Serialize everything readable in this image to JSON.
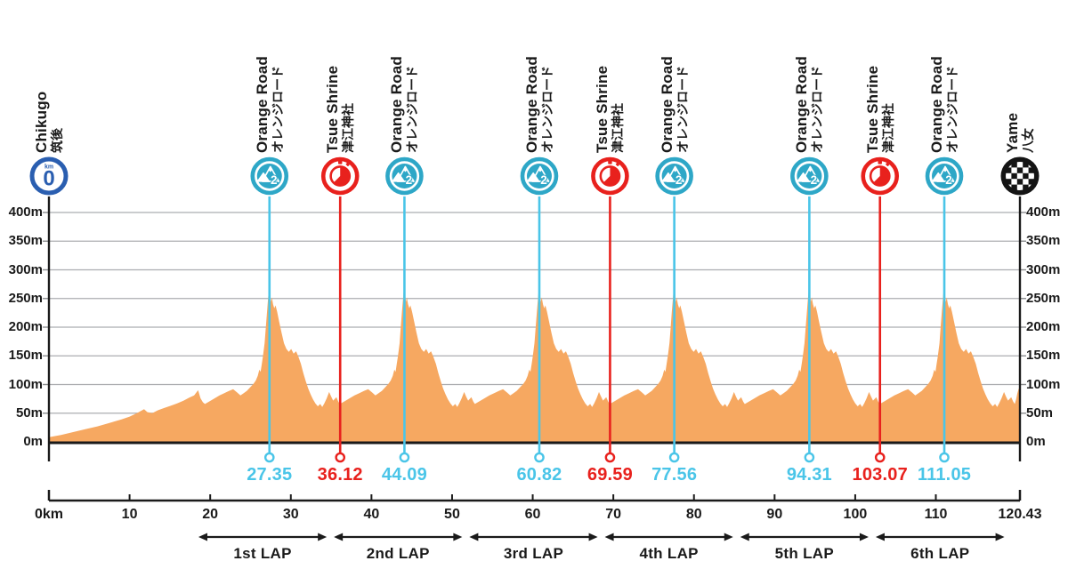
{
  "colors": {
    "profile_fill": "#F6A861",
    "kom_line": "#4AC5E8",
    "kom_icon": "#2EA7C7",
    "sprint_red": "#E8211D",
    "start_blue": "#2A5EB0",
    "finish_black": "#141414",
    "grid": "#ABADB0",
    "ink": "#1A1A1A"
  },
  "chart_data": {
    "type": "area",
    "total_km": 120.43,
    "y_axis": {
      "unit": "m",
      "min": 0,
      "max": 400,
      "step": 50,
      "labels": [
        "0m",
        "50m",
        "100m",
        "150m",
        "200m",
        "250m",
        "300m",
        "350m",
        "400m"
      ],
      "shown_on": "both-sides"
    },
    "x_axis": {
      "unit": "km",
      "ticks": [
        {
          "km": 0,
          "label": "0km"
        },
        {
          "km": 10,
          "label": "10"
        },
        {
          "km": 20,
          "label": "20"
        },
        {
          "km": 30,
          "label": "30"
        },
        {
          "km": 40,
          "label": "40"
        },
        {
          "km": 50,
          "label": "50"
        },
        {
          "km": 60,
          "label": "60"
        },
        {
          "km": 70,
          "label": "70"
        },
        {
          "km": 80,
          "label": "80"
        },
        {
          "km": 90,
          "label": "90"
        },
        {
          "km": 100,
          "label": "100"
        },
        {
          "km": 110,
          "label": "110"
        },
        {
          "km": 120.43,
          "label": "120.43"
        }
      ]
    },
    "markers": [
      {
        "type": "start",
        "icon": "km-zero-badge-icon",
        "km": 0,
        "name_en": "Chikugo",
        "name_ja": "筑後",
        "distance_label": ""
      },
      {
        "type": "kom",
        "icon": "category-2-climb-icon",
        "km": 27.35,
        "name_en": "Orange Road",
        "name_ja": "オレンジロード",
        "distance_label": "27.35"
      },
      {
        "type": "sprint",
        "icon": "stopwatch-icon",
        "km": 36.12,
        "name_en": "Tsue Shrine",
        "name_ja": "津江神社",
        "distance_label": "36.12"
      },
      {
        "type": "kom",
        "icon": "category-2-climb-icon",
        "km": 44.09,
        "name_en": "Orange Road",
        "name_ja": "オレンジロード",
        "distance_label": "44.09"
      },
      {
        "type": "kom",
        "icon": "category-2-climb-icon",
        "km": 60.82,
        "name_en": "Orange Road",
        "name_ja": "オレンジロード",
        "distance_label": "60.82"
      },
      {
        "type": "sprint",
        "icon": "stopwatch-icon",
        "km": 69.59,
        "name_en": "Tsue Shrine",
        "name_ja": "津江神社",
        "distance_label": "69.59"
      },
      {
        "type": "kom",
        "icon": "category-2-climb-icon",
        "km": 77.56,
        "name_en": "Orange Road",
        "name_ja": "オレンジロード",
        "distance_label": "77.56"
      },
      {
        "type": "kom",
        "icon": "category-2-climb-icon",
        "km": 94.31,
        "name_en": "Orange Road",
        "name_ja": "オレンジロード",
        "distance_label": "94.31"
      },
      {
        "type": "sprint",
        "icon": "stopwatch-icon",
        "km": 103.07,
        "name_en": "Tsue Shrine",
        "name_ja": "津江神社",
        "distance_label": "103.07"
      },
      {
        "type": "kom",
        "icon": "category-2-climb-icon",
        "km": 111.05,
        "name_en": "Orange Road",
        "name_ja": "オレンジロード",
        "distance_label": "111.05"
      },
      {
        "type": "finish",
        "icon": "checkered-finish-icon",
        "km": 120.43,
        "name_en": "Yame",
        "name_ja": "八女",
        "distance_label": ""
      }
    ],
    "laps": [
      {
        "label": "1st LAP",
        "from_km": 18.1,
        "to_km": 34.9
      },
      {
        "label": "2nd LAP",
        "from_km": 34.9,
        "to_km": 51.7
      },
      {
        "label": "3rd LAP",
        "from_km": 51.7,
        "to_km": 68.5
      },
      {
        "label": "4th LAP",
        "from_km": 68.5,
        "to_km": 85.3
      },
      {
        "label": "5th LAP",
        "from_km": 85.3,
        "to_km": 102.1
      },
      {
        "label": "6th LAP",
        "from_km": 102.1,
        "to_km": 118.95
      }
    ],
    "profile": {
      "runin_points": [
        [
          0,
          8
        ],
        [
          1.5,
          12
        ],
        [
          3,
          17
        ],
        [
          4.5,
          22
        ],
        [
          6,
          27
        ],
        [
          7.5,
          33
        ],
        [
          9,
          39
        ],
        [
          10,
          44
        ],
        [
          10.9,
          50
        ],
        [
          11.8,
          57
        ],
        [
          12.2,
          52
        ],
        [
          12.8,
          50
        ],
        [
          13.5,
          55
        ],
        [
          14.3,
          59
        ],
        [
          15.1,
          63
        ],
        [
          15.9,
          67
        ],
        [
          16.7,
          72
        ],
        [
          17.4,
          77
        ],
        [
          18.0,
          81
        ],
        [
          18.5,
          90
        ],
        [
          18.8,
          76
        ],
        [
          19.1,
          69
        ]
      ],
      "lap_peaks_km": [
        27.35,
        44.09,
        60.82,
        77.56,
        94.31,
        111.05
      ],
      "lap_pattern_rel_to_peak": [
        [
          -8.0,
          66
        ],
        [
          -7.4,
          71
        ],
        [
          -6.8,
          76
        ],
        [
          -6.2,
          81
        ],
        [
          -5.6,
          85
        ],
        [
          -5.0,
          89
        ],
        [
          -4.5,
          92
        ],
        [
          -4.0,
          86
        ],
        [
          -3.6,
          81
        ],
        [
          -3.2,
          85
        ],
        [
          -2.8,
          89
        ],
        [
          -2.4,
          95
        ],
        [
          -2.0,
          101
        ],
        [
          -1.7,
          107
        ],
        [
          -1.45,
          115
        ],
        [
          -1.25,
          126
        ],
        [
          -1.1,
          122
        ],
        [
          -0.95,
          136
        ],
        [
          -0.8,
          150
        ],
        [
          -0.6,
          172
        ],
        [
          -0.45,
          200
        ],
        [
          -0.3,
          228
        ],
        [
          -0.18,
          248
        ],
        [
          -0.1,
          262
        ],
        [
          0,
          250
        ],
        [
          0.08,
          259
        ],
        [
          0.18,
          244
        ],
        [
          0.3,
          252
        ],
        [
          0.45,
          240
        ],
        [
          0.6,
          233
        ],
        [
          0.75,
          238
        ],
        [
          0.95,
          227
        ],
        [
          1.2,
          210
        ],
        [
          1.5,
          190
        ],
        [
          1.8,
          172
        ],
        [
          2.1,
          162
        ],
        [
          2.4,
          157
        ],
        [
          2.7,
          162
        ],
        [
          3.0,
          154
        ],
        [
          3.3,
          158
        ],
        [
          3.6,
          148
        ],
        [
          3.9,
          136
        ],
        [
          4.2,
          120
        ],
        [
          4.5,
          106
        ],
        [
          4.8,
          93
        ],
        [
          5.1,
          83
        ],
        [
          5.4,
          74
        ],
        [
          5.7,
          67
        ],
        [
          6.0,
          62
        ],
        [
          6.3,
          66
        ],
        [
          6.55,
          61
        ],
        [
          6.8,
          67
        ],
        [
          7.1,
          76
        ],
        [
          7.4,
          87
        ],
        [
          7.65,
          79
        ],
        [
          7.9,
          72
        ],
        [
          8.3,
          78
        ],
        [
          8.55,
          70
        ],
        [
          8.74,
          66
        ]
      ],
      "finish_points": [
        [
          119.95,
          74
        ],
        [
          120.1,
          84
        ],
        [
          120.25,
          92
        ],
        [
          120.43,
          95
        ]
      ]
    }
  }
}
